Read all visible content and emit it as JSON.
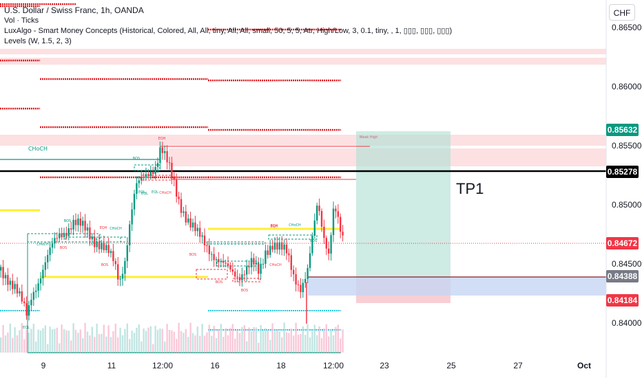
{
  "header": {
    "symbol": "U.S. Dollar / Swiss Franc, 1h, OANDA",
    "indicators": [
      "Vol · Ticks",
      "LuxAlgo - Smart Money Concepts (Historical, Colored, All, All, tiny, All, All, small, 50, 5, 5, Atr, High/Low, 3, 0.1, tiny, , 1, ▯▯▯, ▯▯▯, ▯▯▯)",
      "Levels (W, 1.5, 2, 3)"
    ],
    "currency": "CHF"
  },
  "chart_data": {
    "type": "candlestick",
    "title": "U.S. Dollar / Swiss Franc, 1h, OANDA",
    "y_ticks": [
      "0.86500",
      "0.86000",
      "0.85500",
      "0.85000",
      "0.84500",
      "0.84000"
    ],
    "y_tick_values": [
      0.865,
      0.86,
      0.855,
      0.85,
      0.845,
      0.84
    ],
    "ylim": [
      0.8375,
      0.8675
    ],
    "x_ticks": [
      "9",
      "11",
      "12:00",
      "16",
      "18",
      "12:00",
      "23",
      "25",
      "27",
      "Oct"
    ],
    "price_labels": [
      {
        "text": "0.85632",
        "value": 0.85632,
        "color": "#089981"
      },
      {
        "text": "0.85278",
        "value": 0.85278,
        "color": "#000000"
      },
      {
        "text": "0.84672",
        "value": 0.84672,
        "color": "#f23645"
      },
      {
        "text": "0.84388",
        "value": 0.84388,
        "color": "#787b86"
      },
      {
        "text": "0.84184",
        "value": 0.84184,
        "color": "#f23645"
      }
    ],
    "tp_label": "TP1",
    "tp_level": 0.85278,
    "last_price": 0.84672,
    "entry": 0.84388,
    "stop": 0.84184,
    "structure_labels": [
      "CHoCH",
      "BOS",
      "EQH",
      "EQL",
      "CHoCH",
      "BOS",
      "BOS",
      "EQH",
      "CHoCH",
      "BOS",
      "EQH",
      "EQL",
      "EQL",
      "CHoCH",
      "BOS",
      "EQH",
      "CHoCH",
      "BOS",
      "BOS",
      "CHoCH",
      "EQL",
      "BOS",
      "Weak High"
    ],
    "colors": {
      "up": "#089981",
      "down": "#f23645",
      "level_red": "#e0191f",
      "level_yellow": "#ffee33",
      "level_teal": "#26c6da",
      "tp_zone": "#b3e0d5",
      "sl_zone": "#f7c7cc",
      "entry_zone": "#c6d6f2"
    }
  }
}
